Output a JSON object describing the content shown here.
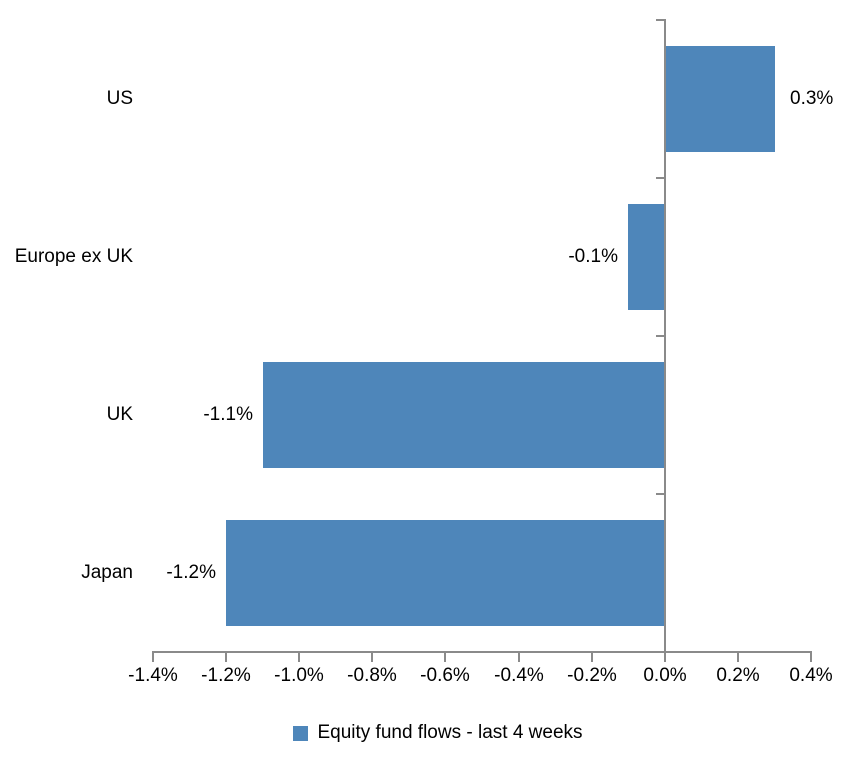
{
  "chart_data": {
    "type": "bar",
    "orientation": "horizontal",
    "title": "",
    "categories": [
      "US",
      "Europe ex UK",
      "UK",
      "Japan"
    ],
    "values": [
      0.3,
      -0.1,
      -1.1,
      -1.2
    ],
    "value_labels": [
      "0.3%",
      "-0.1%",
      "-1.1%",
      "-1.2%"
    ],
    "series": [
      {
        "name": "Equity fund flows - last 4 weeks",
        "values": [
          0.3,
          -0.1,
          -1.1,
          -1.2
        ]
      }
    ],
    "xlabel": "",
    "ylabel": "",
    "xlim": [
      -1.4,
      0.4
    ],
    "x_ticks": [
      -1.4,
      -1.2,
      -1.0,
      -0.8,
      -0.6,
      -0.4,
      -0.2,
      0.0,
      0.2,
      0.4
    ],
    "x_tick_labels": [
      "-1.4%",
      "-1.2%",
      "-1.0%",
      "-0.8%",
      "-0.6%",
      "-0.4%",
      "-0.2%",
      "0.0%",
      "0.2%",
      "0.4%"
    ],
    "grid": false,
    "legend_position": "bottom",
    "bar_color": "#4e86ba",
    "axis_color": "#8a8a8a",
    "text_color": "#000000",
    "background": "#ffffff"
  },
  "legend": {
    "label": "Equity fund flows - last 4 weeks"
  }
}
